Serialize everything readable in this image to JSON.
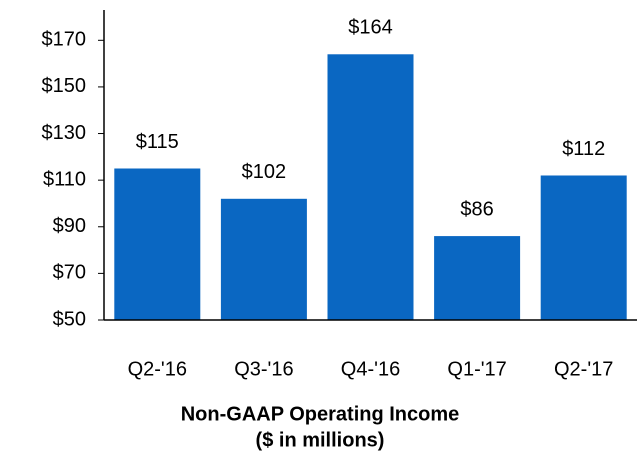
{
  "chart_data": {
    "type": "bar",
    "title": "Non-GAAP Operating Income",
    "subtitle": "($ in millions)",
    "categories": [
      "Q2-'16",
      "Q3-'16",
      "Q4-'16",
      "Q1-'17",
      "Q2-'17"
    ],
    "values": [
      115,
      102,
      164,
      86,
      112
    ],
    "value_labels": [
      "$115",
      "$102",
      "$164",
      "$86",
      "$112"
    ],
    "color": "#0a67c2",
    "ylim": [
      50,
      183
    ],
    "yticks": [
      {
        "value": 50,
        "label": "$50"
      },
      {
        "value": 70,
        "label": "$70"
      },
      {
        "value": 90,
        "label": "$90"
      },
      {
        "value": 110,
        "label": "$110"
      },
      {
        "value": 130,
        "label": "$130"
      },
      {
        "value": 150,
        "label": "$150"
      },
      {
        "value": 170,
        "label": "$170"
      }
    ],
    "grid": false
  }
}
